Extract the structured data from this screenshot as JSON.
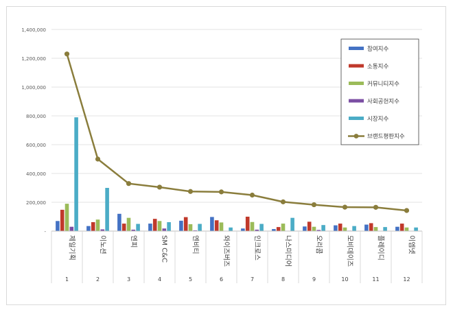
{
  "chart_data": {
    "type": "bar",
    "title": "",
    "xlabel": "",
    "ylabel": "",
    "ylim": [
      0,
      1400000
    ],
    "yticks": [
      0,
      200000,
      400000,
      600000,
      800000,
      1000000,
      1200000,
      1400000
    ],
    "ytick_labels": [
      "-",
      "200,000",
      "400,000",
      "600,000",
      "800,000",
      "1,000,000",
      "1,200,000",
      "1,400,000"
    ],
    "grid": true,
    "legend_position": "top-right",
    "categories": [
      {
        "name": "제일기획",
        "rank": "1"
      },
      {
        "name": "이노션",
        "rank": "2"
      },
      {
        "name": "엔피",
        "rank": "3"
      },
      {
        "name": "SM C&C",
        "rank": "4"
      },
      {
        "name": "엔비티",
        "rank": "5"
      },
      {
        "name": "와이즈버즈",
        "rank": "6"
      },
      {
        "name": "인크로스",
        "rank": "7"
      },
      {
        "name": "나스미디어",
        "rank": "8"
      },
      {
        "name": "오리콤",
        "rank": "9"
      },
      {
        "name": "모비데이즈",
        "rank": "10"
      },
      {
        "name": "플레이디",
        "rank": "11"
      },
      {
        "name": "이엠넷",
        "rank": "12"
      }
    ],
    "series": [
      {
        "name": "참여지수",
        "color": "#4472c4",
        "kind": "bar",
        "values": [
          70000,
          35000,
          120000,
          52000,
          72000,
          98000,
          18000,
          14000,
          32000,
          40000,
          45000,
          30000
        ]
      },
      {
        "name": "소통지수",
        "color": "#c0392b",
        "kind": "bar",
        "values": [
          148000,
          62000,
          52000,
          85000,
          97000,
          75000,
          100000,
          28000,
          65000,
          52000,
          55000,
          52000
        ]
      },
      {
        "name": "커뮤니티지수",
        "color": "#9bbb59",
        "kind": "bar",
        "values": [
          190000,
          80000,
          92000,
          70000,
          48000,
          60000,
          63000,
          52000,
          30000,
          25000,
          28000,
          25000
        ]
      },
      {
        "name": "사회공헌지수",
        "color": "#7b4ea3",
        "kind": "bar",
        "values": [
          30000,
          12000,
          10000,
          18000,
          5000,
          2000,
          10000,
          2000,
          8000,
          3000,
          2000,
          2000
        ]
      },
      {
        "name": "시장지수",
        "color": "#4bacc6",
        "kind": "bar",
        "values": [
          790000,
          300000,
          50000,
          62000,
          50000,
          25000,
          50000,
          92000,
          42000,
          35000,
          28000,
          25000
        ]
      },
      {
        "name": "브랜드평판지수",
        "color": "#8a7d3c",
        "kind": "line",
        "values": [
          1230000,
          500000,
          330000,
          305000,
          275000,
          272000,
          250000,
          203000,
          183000,
          166000,
          165000,
          143000
        ]
      }
    ]
  }
}
